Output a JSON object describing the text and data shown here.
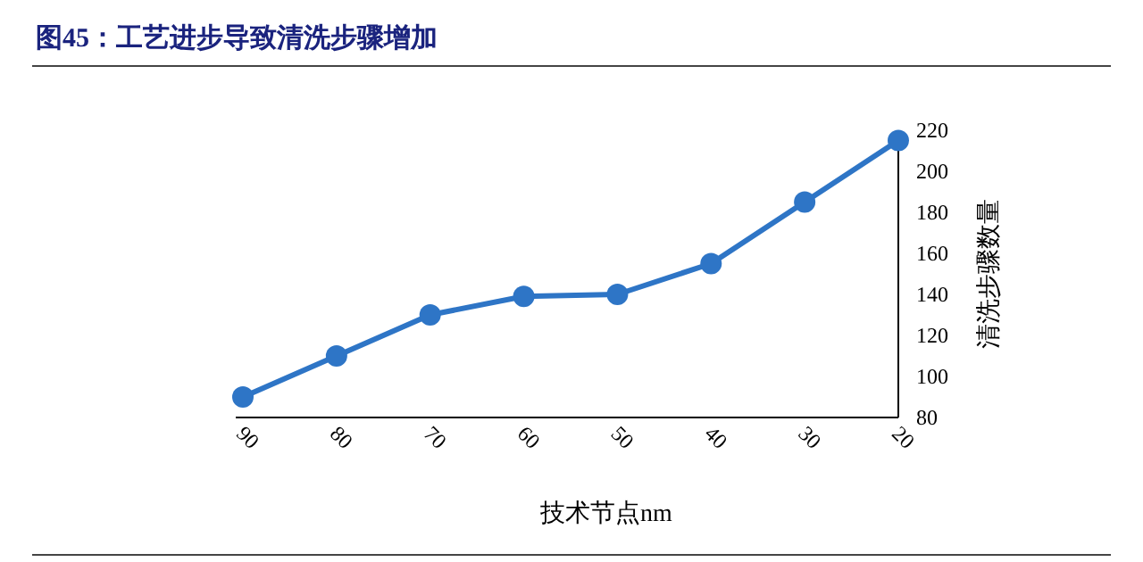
{
  "chart_data": {
    "type": "line",
    "title": "图45：工艺进步导致清洗步骤增加",
    "xlabel": "技术节点nm",
    "ylabel": "清洗步骤数量",
    "categories": [
      "90",
      "80",
      "70",
      "60",
      "50",
      "40",
      "30",
      "20"
    ],
    "series": [
      {
        "color": "#2e75c6",
        "values": [
          90,
          110,
          130,
          139,
          140,
          155,
          185,
          215
        ]
      }
    ],
    "ylim": [
      80,
      220
    ],
    "yticks": [
      80,
      100,
      120,
      140,
      160,
      180,
      200,
      220
    ],
    "grid": false,
    "marker": "circle",
    "line_style": "solid"
  }
}
